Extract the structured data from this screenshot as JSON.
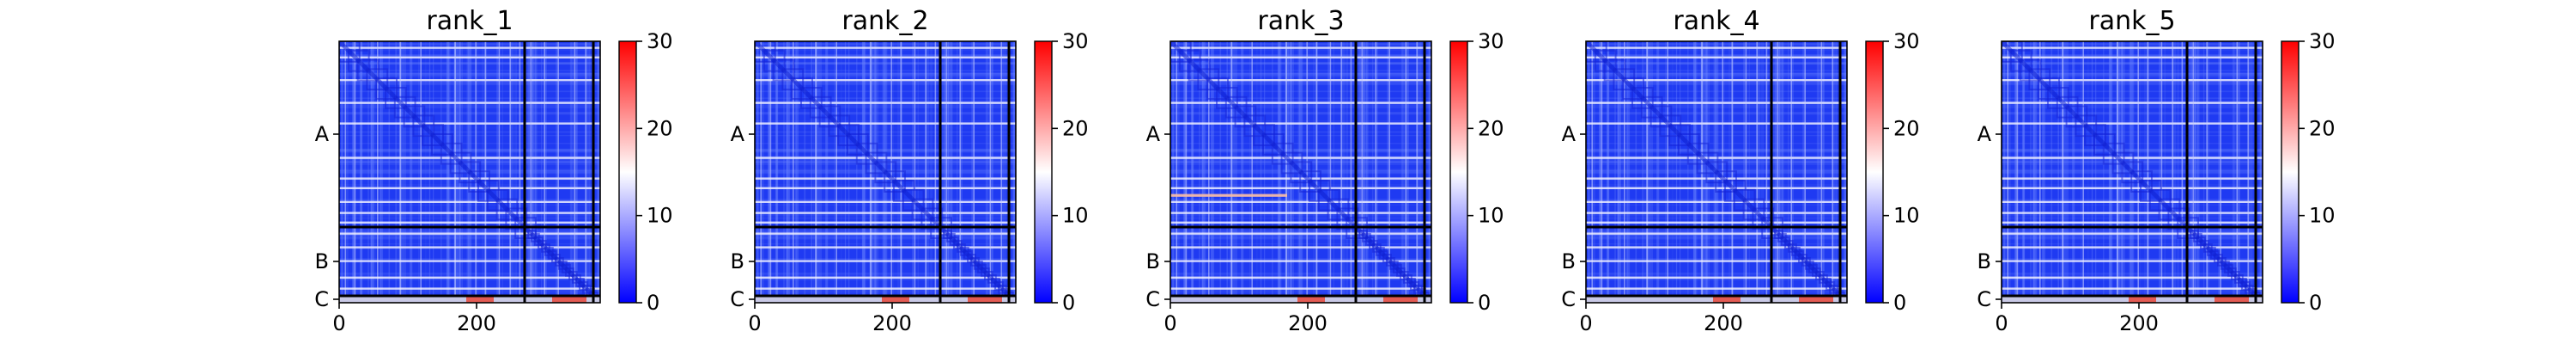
{
  "chart_data": [
    {
      "type": "heatmap",
      "title": "rank_1",
      "xlabel": "",
      "ylabel": "",
      "x_ticks": [
        0,
        200
      ],
      "xlim": [
        0,
        380
      ],
      "y_labels": [
        "A",
        "B",
        "C"
      ],
      "chains": [
        {
          "name": "A",
          "start": 0,
          "end": 270
        },
        {
          "name": "B",
          "start": 270,
          "end": 370
        },
        {
          "name": "C",
          "start": 370,
          "end": 380
        }
      ],
      "colorbar": {
        "min": 0,
        "max": 30,
        "ticks": [
          0,
          10,
          20,
          30
        ],
        "colors": [
          "#0000ff",
          "#ffffff",
          "#ff0000"
        ]
      },
      "bright_rows": [
        8,
        22,
        55,
        88,
        118,
        168,
        198,
        212,
        232,
        248,
        262,
        278,
        298,
        318,
        342,
        358
      ],
      "hot_rows": [],
      "red_strip_cols": [
        [
          185,
          225
        ],
        [
          310,
          360
        ]
      ]
    },
    {
      "type": "heatmap",
      "title": "rank_2",
      "xlabel": "",
      "ylabel": "",
      "x_ticks": [
        0,
        200
      ],
      "xlim": [
        0,
        380
      ],
      "y_labels": [
        "A",
        "B",
        "C"
      ],
      "chains": [
        {
          "name": "A",
          "start": 0,
          "end": 270
        },
        {
          "name": "B",
          "start": 270,
          "end": 370
        },
        {
          "name": "C",
          "start": 370,
          "end": 380
        }
      ],
      "colorbar": {
        "min": 0,
        "max": 30,
        "ticks": [
          0,
          10,
          20,
          30
        ],
        "colors": [
          "#0000ff",
          "#ffffff",
          "#ff0000"
        ]
      },
      "bright_rows": [
        8,
        22,
        55,
        88,
        118,
        168,
        198,
        212,
        232,
        248,
        262,
        278,
        298,
        318,
        342,
        358
      ],
      "hot_rows": [],
      "red_strip_cols": [
        [
          185,
          225
        ],
        [
          310,
          360
        ]
      ]
    },
    {
      "type": "heatmap",
      "title": "rank_3",
      "xlabel": "",
      "ylabel": "",
      "x_ticks": [
        0,
        200
      ],
      "xlim": [
        0,
        380
      ],
      "y_labels": [
        "A",
        "B",
        "C"
      ],
      "chains": [
        {
          "name": "A",
          "start": 0,
          "end": 270
        },
        {
          "name": "B",
          "start": 270,
          "end": 370
        },
        {
          "name": "C",
          "start": 370,
          "end": 380
        }
      ],
      "colorbar": {
        "min": 0,
        "max": 30,
        "ticks": [
          0,
          10,
          20,
          30
        ],
        "colors": [
          "#0000ff",
          "#ffffff",
          "#ff0000"
        ]
      },
      "bright_rows": [
        8,
        22,
        55,
        88,
        118,
        168,
        198,
        212,
        232,
        248,
        262,
        278,
        298,
        318,
        342,
        358
      ],
      "hot_rows": [
        222
      ],
      "red_strip_cols": [
        [
          185,
          225
        ],
        [
          310,
          360
        ]
      ]
    },
    {
      "type": "heatmap",
      "title": "rank_4",
      "xlabel": "",
      "ylabel": "",
      "x_ticks": [
        0,
        200
      ],
      "xlim": [
        0,
        380
      ],
      "y_labels": [
        "A",
        "B",
        "C"
      ],
      "chains": [
        {
          "name": "A",
          "start": 0,
          "end": 270
        },
        {
          "name": "B",
          "start": 270,
          "end": 370
        },
        {
          "name": "C",
          "start": 370,
          "end": 380
        }
      ],
      "colorbar": {
        "min": 0,
        "max": 30,
        "ticks": [
          0,
          10,
          20,
          30
        ],
        "colors": [
          "#0000ff",
          "#ffffff",
          "#ff0000"
        ]
      },
      "bright_rows": [
        8,
        22,
        55,
        88,
        118,
        168,
        198,
        212,
        232,
        248,
        262,
        278,
        298,
        318,
        342,
        358
      ],
      "hot_rows": [],
      "red_strip_cols": [
        [
          185,
          225
        ],
        [
          310,
          360
        ]
      ]
    },
    {
      "type": "heatmap",
      "title": "rank_5",
      "xlabel": "",
      "ylabel": "",
      "x_ticks": [
        0,
        200
      ],
      "xlim": [
        0,
        380
      ],
      "y_labels": [
        "A",
        "B",
        "C"
      ],
      "chains": [
        {
          "name": "A",
          "start": 0,
          "end": 270
        },
        {
          "name": "B",
          "start": 270,
          "end": 370
        },
        {
          "name": "C",
          "start": 370,
          "end": 380
        }
      ],
      "colorbar": {
        "min": 0,
        "max": 30,
        "ticks": [
          0,
          10,
          20,
          30
        ],
        "colors": [
          "#0000ff",
          "#ffffff",
          "#ff0000"
        ]
      },
      "bright_rows": [
        8,
        22,
        55,
        88,
        118,
        168,
        198,
        212,
        232,
        248,
        262,
        278,
        298,
        318,
        342,
        358
      ],
      "hot_rows": [],
      "red_strip_cols": [
        [
          185,
          225
        ],
        [
          310,
          360
        ]
      ]
    }
  ]
}
